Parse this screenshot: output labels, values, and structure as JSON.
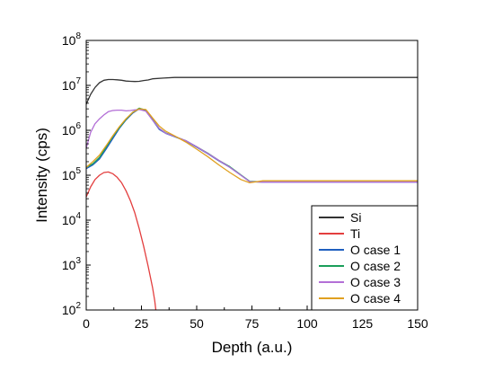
{
  "chart_data": {
    "type": "line",
    "xlabel": "Depth (a.u.)",
    "ylabel": "Intensity (cps)",
    "x_scale": "linear",
    "y_scale": "log",
    "xlim": [
      0,
      150
    ],
    "ylim": [
      100,
      100000000
    ],
    "x_ticks": [
      0,
      25,
      50,
      75,
      100,
      125,
      150
    ],
    "y_ticks": [
      {
        "value": 100,
        "base": "10",
        "exp": "2"
      },
      {
        "value": 1000,
        "base": "10",
        "exp": "3"
      },
      {
        "value": 10000,
        "base": "10",
        "exp": "4"
      },
      {
        "value": 100000,
        "base": "10",
        "exp": "5"
      },
      {
        "value": 1000000,
        "base": "10",
        "exp": "6"
      },
      {
        "value": 10000000,
        "base": "10",
        "exp": "7"
      },
      {
        "value": 100000000,
        "base": "10",
        "exp": "8"
      }
    ],
    "grid": false,
    "legend_position": "bottom-right",
    "series": [
      {
        "name": "Si",
        "color": "#333333",
        "x": [
          0,
          2,
          4,
          6,
          8,
          10,
          12,
          14,
          16,
          18,
          20,
          22,
          24,
          26,
          28,
          30,
          35,
          40,
          45,
          50,
          60,
          75,
          100,
          125,
          150
        ],
        "y": [
          3800000,
          6300000,
          9000000,
          11500000,
          13000000,
          13500000,
          13500000,
          13300000,
          13000000,
          12500000,
          12300000,
          12200000,
          12300000,
          12800000,
          13200000,
          14000000,
          14500000,
          15000000,
          15000000,
          15000000,
          15000000,
          15000000,
          15000000,
          15000000,
          15000000
        ]
      },
      {
        "name": "Ti",
        "color": "#e33e3e",
        "x": [
          0,
          2,
          4,
          6,
          8,
          10,
          12,
          14,
          16,
          18,
          20,
          22,
          24,
          26,
          28,
          30,
          31,
          31.5
        ],
        "y": [
          33000,
          55000,
          80000,
          100000,
          115000,
          118000,
          108000,
          90000,
          68000,
          45000,
          27000,
          14500,
          6500,
          2600,
          950,
          320,
          160,
          100
        ]
      },
      {
        "name": "O case 1",
        "color": "#1f5fbf",
        "x": [
          0,
          3,
          6,
          9,
          12,
          15,
          18,
          21,
          24,
          27,
          30,
          33,
          36,
          40,
          45,
          50,
          55,
          60,
          65,
          70,
          74,
          80,
          90,
          100,
          125,
          150
        ],
        "y": [
          140000,
          170000,
          230000,
          380000,
          650000,
          1100000,
          1700000,
          2400000,
          3000000,
          2700000,
          1700000,
          1050000,
          850000,
          720000,
          580000,
          420000,
          300000,
          210000,
          150000,
          100000,
          72000,
          70000,
          70000,
          70000,
          70000,
          70000
        ]
      },
      {
        "name": "O case 2",
        "color": "#1a9e5a",
        "x": [
          0,
          3,
          6,
          9,
          12,
          15,
          18,
          21,
          24,
          27,
          30,
          33,
          36,
          40,
          45,
          50,
          55,
          60,
          65,
          70,
          74,
          80,
          90,
          100,
          125,
          150
        ],
        "y": [
          150000,
          180000,
          250000,
          420000,
          720000,
          1150000,
          1750000,
          2500000,
          3100000,
          2800000,
          1750000,
          1100000,
          870000,
          730000,
          590000,
          430000,
          310000,
          215000,
          155000,
          102000,
          73000,
          71000,
          71000,
          71000,
          71000,
          71000
        ]
      },
      {
        "name": "O case 3",
        "color": "#b36fd6",
        "x": [
          0,
          2,
          4,
          6,
          8,
          10,
          12,
          14,
          16,
          18,
          20,
          22,
          24,
          27,
          30,
          33,
          36,
          40,
          45,
          50,
          55,
          60,
          65,
          70,
          74,
          80,
          90,
          100,
          125,
          150
        ],
        "y": [
          400000,
          900000,
          1400000,
          1800000,
          2200000,
          2600000,
          2750000,
          2800000,
          2800000,
          2700000,
          2750000,
          2850000,
          2900000,
          2650000,
          1700000,
          1100000,
          860000,
          730000,
          590000,
          430000,
          305000,
          215000,
          150000,
          100000,
          72000,
          70000,
          70000,
          70000,
          70000,
          70000
        ]
      },
      {
        "name": "O case 4",
        "color": "#e0a020",
        "x": [
          0,
          3,
          6,
          9,
          12,
          15,
          18,
          21,
          24,
          27,
          30,
          33,
          36,
          40,
          45,
          50,
          55,
          60,
          65,
          70,
          74,
          80,
          90,
          100,
          125,
          150
        ],
        "y": [
          150000,
          200000,
          280000,
          450000,
          750000,
          1200000,
          1800000,
          2500000,
          3000000,
          2900000,
          1900000,
          1250000,
          950000,
          750000,
          550000,
          380000,
          260000,
          170000,
          115000,
          80000,
          68000,
          75000,
          75000,
          75000,
          75000,
          75000
        ]
      }
    ]
  }
}
